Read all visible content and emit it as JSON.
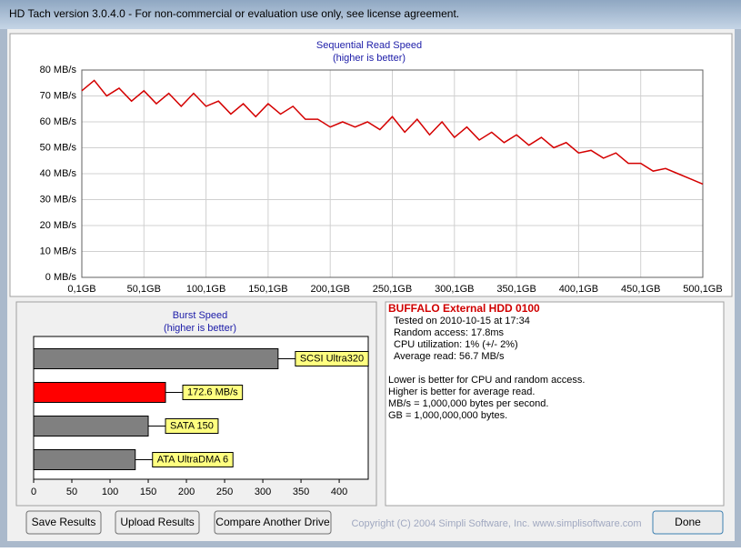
{
  "window": {
    "title": "HD Tach version 3.0.4.0  - For non-commercial or evaluation use only, see license agreement."
  },
  "chart_data": [
    {
      "type": "line",
      "title": "Sequential Read Speed",
      "subtitle": "(higher is better)",
      "color": "#d40000",
      "grid": true,
      "x": [
        0.1,
        10.1,
        20.1,
        30.1,
        40.1,
        50.1,
        60.1,
        70.1,
        80.1,
        90.1,
        100.1,
        110.1,
        120.1,
        130.1,
        140.1,
        150.1,
        160.1,
        170.1,
        180.1,
        190.1,
        200.1,
        210.1,
        220.1,
        230.1,
        240.1,
        250.1,
        260.1,
        270.1,
        280.1,
        290.1,
        300.1,
        310.1,
        320.1,
        330.1,
        340.1,
        350.1,
        360.1,
        370.1,
        380.1,
        390.1,
        400.1,
        410.1,
        420.1,
        430.1,
        440.1,
        450.1,
        460.1,
        470.1,
        480.1,
        490.1,
        500.1
      ],
      "values": [
        72,
        76,
        70,
        73,
        68,
        72,
        67,
        71,
        66,
        71,
        66,
        68,
        63,
        67,
        62,
        67,
        63,
        66,
        61,
        61,
        58,
        60,
        58,
        60,
        57,
        62,
        56,
        61,
        55,
        60,
        54,
        58,
        53,
        56,
        52,
        55,
        51,
        54,
        50,
        52,
        48,
        49,
        46,
        48,
        44,
        44,
        41,
        42,
        40,
        38,
        36
      ],
      "xlim": [
        0.1,
        500.1
      ],
      "xticks": [
        {
          "value": 0.1,
          "label": "0,1GB"
        },
        {
          "value": 50.1,
          "label": "50,1GB"
        },
        {
          "value": 100.1,
          "label": "100,1GB"
        },
        {
          "value": 150.1,
          "label": "150,1GB"
        },
        {
          "value": 200.1,
          "label": "200,1GB"
        },
        {
          "value": 250.1,
          "label": "250,1GB"
        },
        {
          "value": 300.1,
          "label": "300,1GB"
        },
        {
          "value": 350.1,
          "label": "350,1GB"
        },
        {
          "value": 400.1,
          "label": "400,1GB"
        },
        {
          "value": 450.1,
          "label": "450,1GB"
        },
        {
          "value": 500.1,
          "label": "500,1GB"
        }
      ],
      "ylim": [
        0,
        80
      ],
      "yticks": [
        {
          "value": 0,
          "label": "0 MB/s"
        },
        {
          "value": 10,
          "label": "10 MB/s"
        },
        {
          "value": 20,
          "label": "20 MB/s"
        },
        {
          "value": 30,
          "label": "30 MB/s"
        },
        {
          "value": 40,
          "label": "40 MB/s"
        },
        {
          "value": 50,
          "label": "50 MB/s"
        },
        {
          "value": 60,
          "label": "60 MB/s"
        },
        {
          "value": 70,
          "label": "70 MB/s"
        },
        {
          "value": 80,
          "label": "80 MB/s"
        }
      ]
    },
    {
      "type": "hbar",
      "title": "Burst Speed",
      "subtitle": "(higher is better)",
      "categories": [
        "SCSI Ultra320",
        null,
        "SATA 150",
        "ATA UltraDMA 6"
      ],
      "values": [
        320,
        172.6,
        150,
        133
      ],
      "value_labels": [
        null,
        "172.6 MB/s",
        null,
        null
      ],
      "colors": [
        "#808080",
        "#ff0000",
        "#808080",
        "#808080"
      ],
      "xlim": [
        0,
        438
      ],
      "xticks": [
        0,
        50,
        100,
        150,
        200,
        250,
        300,
        350,
        400
      ]
    }
  ],
  "info": {
    "drive": "BUFFALO External HDD 0100",
    "details": [
      "Tested on 2010-10-15 at 17:34",
      "Random access: 17.8ms",
      "CPU utilization: 1% (+/- 2%)",
      "Average read: 56.7 MB/s"
    ],
    "notes": [
      "Lower is better for CPU and random access.",
      "Higher is better for average read.",
      "MB/s = 1,000,000 bytes per second.",
      "GB = 1,000,000,000 bytes."
    ]
  },
  "buttons": [
    "Save Results",
    "Upload Results",
    "Compare Another Drive",
    "Done"
  ],
  "copyright": "Copyright (C) 2004 Simpli Software, Inc. www.simplisoftware.com"
}
